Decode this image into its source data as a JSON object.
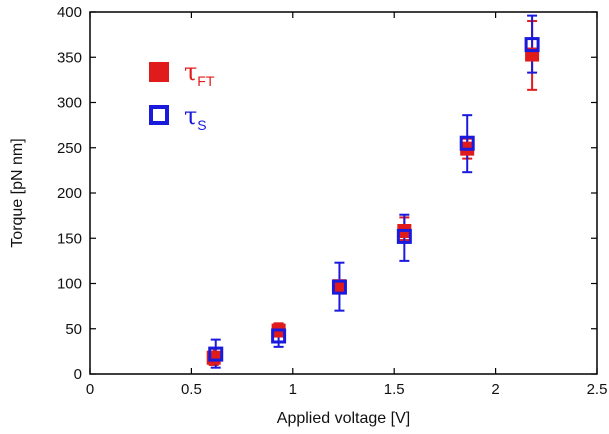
{
  "chart_data": {
    "type": "scatter",
    "xlabel": "Applied voltage [V]",
    "ylabel": "Torque [pN nm]",
    "xlim": [
      0,
      2.5
    ],
    "ylim": [
      0,
      400
    ],
    "x_ticks": [
      0,
      0.5,
      1,
      1.5,
      2,
      2.5
    ],
    "x_tick_labels": [
      "0",
      "0.5",
      "1",
      "1.5",
      "2",
      "2.5"
    ],
    "y_ticks": [
      0,
      50,
      100,
      150,
      200,
      250,
      300,
      350,
      400
    ],
    "y_tick_labels": [
      "0",
      "50",
      "100",
      "150",
      "200",
      "250",
      "300",
      "350",
      "400"
    ],
    "grid": false,
    "legend_position": "top-left",
    "series": [
      {
        "name": "τ_FT",
        "symbol": "τ",
        "subscript": "FT",
        "marker": "filled-square",
        "color": "#e01b1b",
        "points": [
          {
            "x": 0.61,
            "y": 18,
            "err_low": 10,
            "err_high": 28
          },
          {
            "x": 0.93,
            "y": 48,
            "err_low": 42,
            "err_high": 56
          },
          {
            "x": 1.23,
            "y": 97,
            "err_low": 92,
            "err_high": 102
          },
          {
            "x": 1.55,
            "y": 158,
            "err_low": 148,
            "err_high": 173
          },
          {
            "x": 1.86,
            "y": 249,
            "err_low": 238,
            "err_high": 260
          },
          {
            "x": 2.18,
            "y": 353,
            "err_low": 314,
            "err_high": 390
          }
        ]
      },
      {
        "name": "τ_S",
        "symbol": "τ",
        "subscript": "S",
        "marker": "open-square",
        "color": "#1a1add",
        "points": [
          {
            "x": 0.62,
            "y": 22,
            "err_low": 7,
            "err_high": 38
          },
          {
            "x": 0.93,
            "y": 42,
            "err_low": 30,
            "err_high": 53
          },
          {
            "x": 1.23,
            "y": 96,
            "err_low": 70,
            "err_high": 123
          },
          {
            "x": 1.55,
            "y": 152,
            "err_low": 125,
            "err_high": 176
          },
          {
            "x": 1.86,
            "y": 255,
            "err_low": 223,
            "err_high": 286
          },
          {
            "x": 2.18,
            "y": 364,
            "err_low": 333,
            "err_high": 396
          }
        ]
      }
    ]
  }
}
